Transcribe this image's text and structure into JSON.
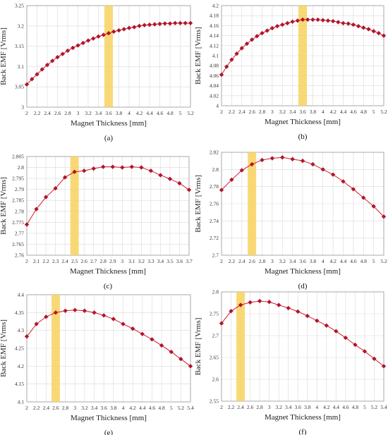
{
  "colors": {
    "line": "#cc1f2f",
    "marker": "#b5132a",
    "highlight": "#f7d25e",
    "grid": "#d9d9d9",
    "axis": "#9a9a9a"
  },
  "chart_data": [
    {
      "id": "a",
      "type": "line",
      "panel_label": "(a)",
      "xlabel": "Magnet Thickness [mm]",
      "ylabel": "Back EMF [Vrms]",
      "ylim": [
        3,
        3.25
      ],
      "xlim": [
        2,
        5.2
      ],
      "y_ticks": [
        "3",
        "3.05",
        "3.1",
        "3.15",
        "3.2",
        "3.25"
      ],
      "x_ticks": [
        "2",
        "2.2",
        "2.4",
        "2.6",
        "2.8",
        "3",
        "3.2",
        "3.4",
        "3.6",
        "3.8",
        "4",
        "4.2",
        "4.4",
        "4.6",
        "4.8",
        "5",
        "5.2"
      ],
      "highlight_x": 3.6,
      "x": [
        2,
        2.1,
        2.2,
        2.3,
        2.4,
        2.5,
        2.6,
        2.7,
        2.8,
        2.9,
        3,
        3.1,
        3.2,
        3.3,
        3.4,
        3.5,
        3.6,
        3.7,
        3.8,
        3.9,
        4,
        4.1,
        4.2,
        4.3,
        4.4,
        4.5,
        4.6,
        4.7,
        4.8,
        4.9,
        5,
        5.1,
        5.2
      ],
      "values": [
        3.056,
        3.069,
        3.081,
        3.093,
        3.104,
        3.114,
        3.123,
        3.131,
        3.139,
        3.146,
        3.152,
        3.158,
        3.164,
        3.169,
        3.174,
        3.178,
        3.182,
        3.186,
        3.189,
        3.192,
        3.195,
        3.197,
        3.2,
        3.202,
        3.203,
        3.204,
        3.205,
        3.206,
        3.206,
        3.207,
        3.207,
        3.207,
        3.207
      ]
    },
    {
      "id": "b",
      "type": "line",
      "panel_label": "(b)",
      "xlabel": "Magnet Thickness [mm]",
      "ylabel": "Back EMF [Vrms]",
      "ylim": [
        4,
        4.2
      ],
      "xlim": [
        2,
        5.2
      ],
      "y_ticks": [
        "4",
        "4.02",
        "4.04",
        "4.06",
        "4.08",
        "4.1",
        "4.12",
        "4.14",
        "4.16",
        "4.18",
        "4.2"
      ],
      "x_ticks": [
        "2",
        "2.2",
        "2.4",
        "2.6",
        "2.8",
        "3",
        "3.2",
        "3.4",
        "3.6",
        "3.8",
        "4",
        "4.2",
        "4.4",
        "4.6",
        "4.8",
        "5",
        "5.2"
      ],
      "highlight_x": 3.6,
      "x": [
        2,
        2.1,
        2.2,
        2.3,
        2.4,
        2.5,
        2.6,
        2.7,
        2.8,
        2.9,
        3,
        3.1,
        3.2,
        3.3,
        3.4,
        3.5,
        3.6,
        3.7,
        3.8,
        3.9,
        4,
        4.1,
        4.2,
        4.3,
        4.4,
        4.5,
        4.6,
        4.7,
        4.8,
        4.9,
        5,
        5.1,
        5.2
      ],
      "values": [
        4.062,
        4.078,
        4.092,
        4.104,
        4.115,
        4.124,
        4.132,
        4.139,
        4.145,
        4.15,
        4.155,
        4.159,
        4.162,
        4.165,
        4.168,
        4.17,
        4.172,
        4.172,
        4.172,
        4.172,
        4.171,
        4.17,
        4.169,
        4.167,
        4.165,
        4.164,
        4.162,
        4.159,
        4.156,
        4.153,
        4.149,
        4.145,
        4.14
      ]
    },
    {
      "id": "c",
      "type": "line",
      "panel_label": "(c)",
      "xlabel": "Magnet Thickness [mm]",
      "ylabel": "Back EMF [Vrms]",
      "ylim": [
        2.76,
        2.805
      ],
      "xlim": [
        2,
        3.7
      ],
      "y_ticks": [
        "2.76",
        "2.765",
        "2.77",
        "2.775",
        "2.78",
        "2.785",
        "2.79",
        "2.795",
        "2.8",
        "2.805"
      ],
      "x_ticks": [
        "2",
        "2.1",
        "2.2",
        "2.3",
        "2.4",
        "2.5",
        "2.6",
        "2.7",
        "2.8",
        "2.9",
        "3",
        "3.1",
        "3.2",
        "3.3",
        "3.4",
        "3.5",
        "3.6",
        "3.7"
      ],
      "highlight_x": 2.5,
      "x": [
        2,
        2.1,
        2.2,
        2.3,
        2.4,
        2.5,
        2.6,
        2.7,
        2.8,
        2.9,
        3,
        3.1,
        3.2,
        3.3,
        3.4,
        3.5,
        3.6,
        3.7
      ],
      "values": [
        2.774,
        2.781,
        2.7865,
        2.7905,
        2.7955,
        2.798,
        2.7985,
        2.7995,
        2.8003,
        2.8003,
        2.8,
        2.8003,
        2.8,
        2.7985,
        2.7965,
        2.7948,
        2.7928,
        2.7898
      ]
    },
    {
      "id": "d",
      "type": "line",
      "panel_label": "(d)",
      "xlabel": "Magnet Thickness [mm]",
      "ylabel": "Back EMF [Vrms]",
      "ylim": [
        2.7,
        2.82
      ],
      "xlim": [
        2,
        5.2
      ],
      "y_ticks": [
        "2.7",
        "2.72",
        "2.74",
        "2.76",
        "2.78",
        "2.8",
        "2.82"
      ],
      "x_ticks": [
        "2",
        "2.2",
        "2.4",
        "2.6",
        "2.8",
        "3",
        "3.2",
        "3.4",
        "3.6",
        "3.8",
        "4",
        "4.2",
        "4.4",
        "4.6",
        "4.8",
        "5",
        "5.2"
      ],
      "highlight_x": 2.6,
      "x": [
        2,
        2.2,
        2.4,
        2.6,
        2.8,
        3,
        3.2,
        3.4,
        3.6,
        3.8,
        4,
        4.2,
        4.4,
        4.6,
        4.8,
        5,
        5.2
      ],
      "values": [
        2.776,
        2.788,
        2.799,
        2.806,
        2.811,
        2.813,
        2.814,
        2.812,
        2.81,
        2.806,
        2.8,
        2.794,
        2.786,
        2.777,
        2.767,
        2.757,
        2.745
      ]
    },
    {
      "id": "e",
      "type": "line",
      "panel_label": "(e)",
      "xlabel": "Magnet Thickness [mm]",
      "ylabel": "Back EMF [Vrms]",
      "ylim": [
        4.1,
        4.4
      ],
      "xlim": [
        2,
        5.4
      ],
      "y_ticks": [
        "4.1",
        "4.15",
        "4.2",
        "4.25",
        "4.3",
        "4.35",
        "4.4"
      ],
      "x_ticks": [
        "2",
        "2.2",
        "2.4",
        "2.6",
        "2.8",
        "3",
        "3.2",
        "3.4",
        "3.6",
        "3.8",
        "4",
        "4.2",
        "4.4",
        "4.6",
        "4.8",
        "5",
        "5.2",
        "5.4"
      ],
      "highlight_x": 2.6,
      "x": [
        2,
        2.2,
        2.4,
        2.6,
        2.8,
        3,
        3.2,
        3.4,
        3.6,
        3.8,
        4,
        4.2,
        4.4,
        4.6,
        4.8,
        5,
        5.2,
        5.4
      ],
      "values": [
        4.283,
        4.318,
        4.338,
        4.35,
        4.355,
        4.357,
        4.355,
        4.35,
        4.342,
        4.332,
        4.318,
        4.305,
        4.29,
        4.275,
        4.258,
        4.24,
        4.22,
        4.2
      ]
    },
    {
      "id": "f",
      "type": "line",
      "panel_label": "(f)",
      "xlabel": "Magnet Thickness [mm]",
      "ylabel": "Back EMF [Vrms]",
      "ylim": [
        2.55,
        2.8
      ],
      "xlim": [
        2,
        5.4
      ],
      "y_ticks": [
        "2.55",
        "2.6",
        "2.65",
        "2.7",
        "2.75",
        "2.8"
      ],
      "x_ticks": [
        "2",
        "2.2",
        "2.4",
        "2.6",
        "2.8",
        "3",
        "3.2",
        "3.4",
        "3.6",
        "3.8",
        "4",
        "4.2",
        "4.4",
        "4.6",
        "4.8",
        "5",
        "5.2",
        "5.4"
      ],
      "highlight_x": 2.4,
      "x": [
        2,
        2.2,
        2.4,
        2.6,
        2.8,
        3,
        3.2,
        3.4,
        3.6,
        3.8,
        4,
        4.2,
        4.4,
        4.6,
        4.8,
        5,
        5.2,
        5.4
      ],
      "values": [
        2.728,
        2.756,
        2.77,
        2.776,
        2.779,
        2.777,
        2.77,
        2.763,
        2.755,
        2.745,
        2.734,
        2.723,
        2.71,
        2.695,
        2.679,
        2.664,
        2.647,
        2.63
      ]
    }
  ]
}
